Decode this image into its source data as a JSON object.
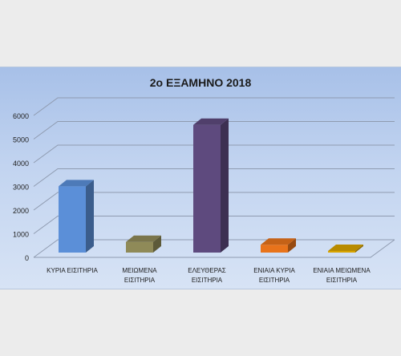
{
  "chart_data": {
    "type": "bar",
    "title": "2ο ΕΞΑΜΗΝΟ 2018",
    "categories": [
      [
        "ΚΥΡΙΑ ΕΙΣΙΤΗΡΙΑ"
      ],
      [
        "ΜΕΙΩΜΕΝΑ",
        "ΕΙΣΙΤΗΡΙΑ"
      ],
      [
        "ΕΛΕΥΘΕΡΑΣ",
        "ΕΙΣΙΤΗΡΙΑ"
      ],
      [
        "ΕΝΙΑΙΑ ΚΥΡΙΑ",
        "ΕΙΣΙΤΗΡΙΑ"
      ],
      [
        "ΕΝΙΑΙΑ ΜΕΙΩΜΕΝΑ",
        "ΕΙΣΙΤΗΡΙΑ"
      ]
    ],
    "values": [
      2800,
      450,
      5400,
      330,
      20
    ],
    "colors": [
      "#5b8fd8",
      "#8f8a58",
      "#5e4a7e",
      "#e8731b",
      "#d9a400"
    ],
    "yticks": [
      "0",
      "1000",
      "2000",
      "3000",
      "4000",
      "5000",
      "6000"
    ],
    "ylim": [
      0,
      6000
    ],
    "grid": true,
    "style": "3d-column"
  }
}
